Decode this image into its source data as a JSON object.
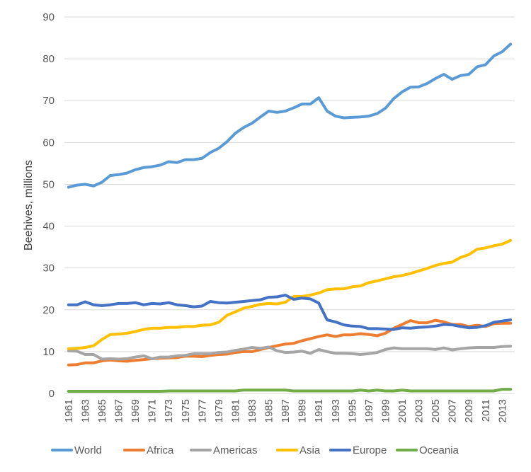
{
  "chart_data": {
    "type": "line",
    "title": "",
    "xlabel": "",
    "ylabel": "Beehives, millions",
    "ylim": [
      0,
      90
    ],
    "yticks": [
      0,
      10,
      20,
      30,
      40,
      50,
      60,
      70,
      80,
      90
    ],
    "grid": true,
    "legend_position": "bottom",
    "x": [
      1961,
      1962,
      1963,
      1964,
      1965,
      1966,
      1967,
      1968,
      1969,
      1970,
      1971,
      1972,
      1973,
      1974,
      1975,
      1976,
      1977,
      1978,
      1979,
      1980,
      1981,
      1982,
      1983,
      1984,
      1985,
      1986,
      1987,
      1988,
      1989,
      1990,
      1991,
      1992,
      1993,
      1994,
      1995,
      1996,
      1997,
      1998,
      1999,
      2000,
      2001,
      2002,
      2003,
      2004,
      2005,
      2006,
      2007,
      2008,
      2009,
      2010,
      2011,
      2012,
      2013,
      2014
    ],
    "xtick_labels": [
      "1961",
      "1963",
      "1965",
      "1967",
      "1969",
      "1971",
      "1973",
      "1975",
      "1977",
      "1979",
      "1981",
      "1983",
      "1985",
      "1987",
      "1989",
      "1991",
      "1993",
      "1995",
      "1997",
      "1999",
      "2001",
      "2003",
      "2005",
      "2007",
      "2009",
      "2011",
      "2013"
    ],
    "series": [
      {
        "name": "World",
        "color": "#5b9bd5",
        "values": [
          49.3,
          49.8,
          50.0,
          49.6,
          50.5,
          52.1,
          52.3,
          52.7,
          53.5,
          54.0,
          54.2,
          54.6,
          55.4,
          55.2,
          55.9,
          55.9,
          56.2,
          57.6,
          58.6,
          60.2,
          62.2,
          63.6,
          64.6,
          66.1,
          67.5,
          67.2,
          67.5,
          68.3,
          69.2,
          69.2,
          70.7,
          67.5,
          66.3,
          65.9,
          66.0,
          66.1,
          66.3,
          66.9,
          68.2,
          70.5,
          72.1,
          73.2,
          73.3,
          74.1,
          75.3,
          76.3,
          75.1,
          76.0,
          76.3,
          78.1,
          78.6,
          80.7,
          81.7,
          83.5
        ]
      },
      {
        "name": "Africa",
        "color": "#ed7d31",
        "values": [
          6.8,
          6.9,
          7.3,
          7.3,
          7.8,
          8.0,
          7.8,
          7.7,
          7.9,
          8.1,
          8.3,
          8.4,
          8.5,
          8.6,
          8.9,
          8.9,
          8.8,
          9.1,
          9.3,
          9.4,
          9.8,
          10.0,
          10.0,
          10.5,
          11.0,
          11.4,
          11.8,
          12.0,
          12.6,
          13.1,
          13.6,
          14.0,
          13.6,
          14.0,
          14.0,
          14.3,
          14.1,
          13.8,
          14.4,
          15.6,
          16.5,
          17.4,
          16.9,
          16.9,
          17.5,
          17.1,
          16.5,
          16.5,
          16.0,
          16.3,
          16.0,
          16.7,
          16.8,
          16.8
        ]
      },
      {
        "name": "Americas",
        "color": "#a5a5a5",
        "values": [
          10.2,
          10.1,
          9.3,
          9.3,
          8.2,
          8.3,
          8.2,
          8.3,
          8.7,
          9.0,
          8.3,
          8.7,
          8.7,
          9.0,
          9.1,
          9.5,
          9.5,
          9.5,
          9.8,
          9.9,
          10.3,
          10.6,
          11.0,
          10.8,
          11.1,
          10.2,
          9.8,
          9.9,
          10.1,
          9.6,
          10.5,
          10.0,
          9.6,
          9.6,
          9.5,
          9.3,
          9.5,
          9.8,
          10.5,
          10.9,
          10.7,
          10.7,
          10.7,
          10.7,
          10.5,
          10.9,
          10.4,
          10.7,
          10.9,
          11.0,
          11.0,
          11.0,
          11.2,
          11.3
        ]
      },
      {
        "name": "Asia",
        "color": "#ffc000",
        "values": [
          10.7,
          10.8,
          11.0,
          11.4,
          12.9,
          14.1,
          14.2,
          14.4,
          14.8,
          15.3,
          15.6,
          15.6,
          15.8,
          15.8,
          16.0,
          16.0,
          16.3,
          16.4,
          17.0,
          18.7,
          19.5,
          20.4,
          20.8,
          21.3,
          21.5,
          21.4,
          21.8,
          23.2,
          23.2,
          23.5,
          24.0,
          24.8,
          25.0,
          25.0,
          25.5,
          25.7,
          26.5,
          26.9,
          27.4,
          27.9,
          28.2,
          28.7,
          29.3,
          29.9,
          30.6,
          31.1,
          31.4,
          32.5,
          33.2,
          34.5,
          34.8,
          35.3,
          35.7,
          36.6
        ]
      },
      {
        "name": "Europe",
        "color": "#4472c4",
        "values": [
          21.2,
          21.2,
          21.9,
          21.2,
          21.0,
          21.2,
          21.5,
          21.5,
          21.7,
          21.2,
          21.5,
          21.4,
          21.7,
          21.2,
          21.0,
          20.7,
          20.9,
          22.0,
          21.7,
          21.6,
          21.8,
          22.0,
          22.2,
          22.4,
          23.0,
          23.1,
          23.5,
          22.5,
          22.8,
          22.6,
          21.6,
          17.6,
          17.1,
          16.4,
          16.1,
          16.0,
          15.5,
          15.5,
          15.4,
          15.3,
          15.7,
          15.6,
          15.8,
          15.9,
          16.1,
          16.5,
          16.4,
          16.0,
          15.7,
          15.8,
          16.2,
          17.0,
          17.3,
          17.6
        ]
      },
      {
        "name": "Oceania",
        "color": "#70ad47",
        "values": [
          0.5,
          0.5,
          0.5,
          0.5,
          0.5,
          0.5,
          0.5,
          0.5,
          0.5,
          0.5,
          0.5,
          0.5,
          0.6,
          0.6,
          0.6,
          0.6,
          0.6,
          0.6,
          0.6,
          0.6,
          0.6,
          0.8,
          0.8,
          0.8,
          0.8,
          0.8,
          0.8,
          0.6,
          0.6,
          0.6,
          0.6,
          0.6,
          0.6,
          0.6,
          0.6,
          0.8,
          0.6,
          0.8,
          0.6,
          0.6,
          0.8,
          0.6,
          0.6,
          0.6,
          0.6,
          0.6,
          0.6,
          0.6,
          0.6,
          0.6,
          0.6,
          0.6,
          1.0,
          1.0
        ]
      }
    ]
  }
}
